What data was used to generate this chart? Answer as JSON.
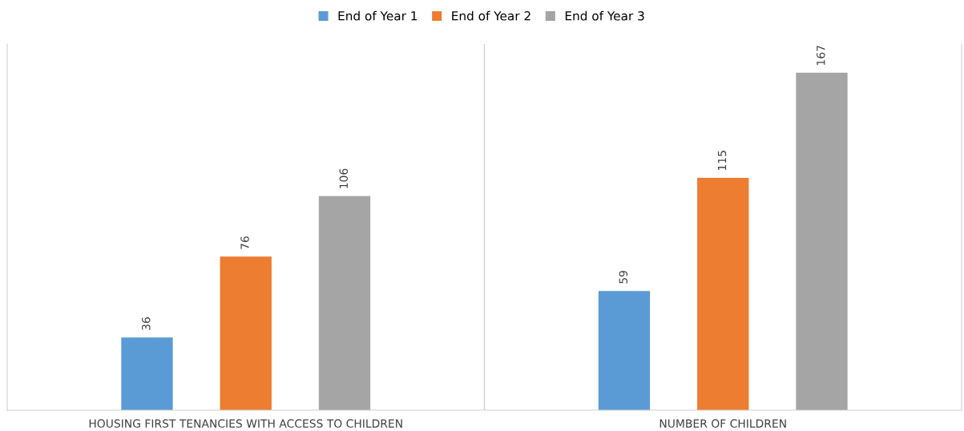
{
  "chart_data": {
    "type": "bar",
    "categories": [
      "HOUSING FIRST TENANCIES WITH ACCESS TO CHILDREN",
      "NUMBER OF CHILDREN"
    ],
    "series": [
      {
        "name": "End of Year 1",
        "color": "#5b9bd5",
        "values": [
          36,
          59
        ]
      },
      {
        "name": "End of Year 2",
        "color": "#ed7d31",
        "values": [
          76,
          115
        ]
      },
      {
        "name": "End of Year 3",
        "color": "#a5a5a5",
        "values": [
          106,
          167
        ]
      }
    ],
    "data_labels": true,
    "legend": "top",
    "grid": false
  }
}
